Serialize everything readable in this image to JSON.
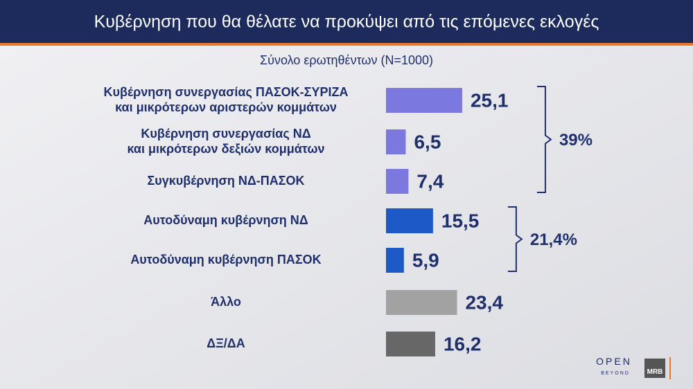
{
  "chart_data": {
    "type": "bar",
    "orientation": "horizontal",
    "title": "Κυβέρνηση που θα θέλατε να προκύψει από τις επόμενες εκλογές",
    "subtitle": "Σύνολο ερωτηθέντων (N=1000)",
    "categories": [
      "Κυβέρνηση συνεργασίας ΠΑΣΟΚ-ΣΥΡΙΖΑ\nκαι μικρότερων αριστερών κομμάτων",
      "Κυβέρνηση συνεργασίας ΝΔ\nκαι μικρότερων δεξιών κομμάτων",
      "Συγκυβέρνηση ΝΔ-ΠΑΣΟΚ",
      "Αυτοδύναμη κυβέρνηση ΝΔ",
      "Αυτοδύναμη κυβέρνηση ΠΑΣΟΚ",
      "Άλλο",
      "ΔΞ/ΔΑ"
    ],
    "values": [
      25.1,
      6.5,
      7.4,
      15.5,
      5.9,
      23.4,
      16.2
    ],
    "value_labels": [
      "25,1",
      "6,5",
      "7,4",
      "15,5",
      "5,9",
      "23,4",
      "16,2"
    ],
    "colors": [
      "#7b78e0",
      "#7b78e0",
      "#7b78e0",
      "#1d5ac8",
      "#1d5ac8",
      "#a2a2a2",
      "#676767"
    ],
    "annotations": [
      {
        "value": 39,
        "label": "39%",
        "members": [
          0,
          1,
          2
        ]
      },
      {
        "value": 21.4,
        "label": "21,4%",
        "members": [
          3,
          4
        ]
      }
    ],
    "logos": [
      "OPEN",
      "BEYOND",
      "MRB"
    ]
  }
}
